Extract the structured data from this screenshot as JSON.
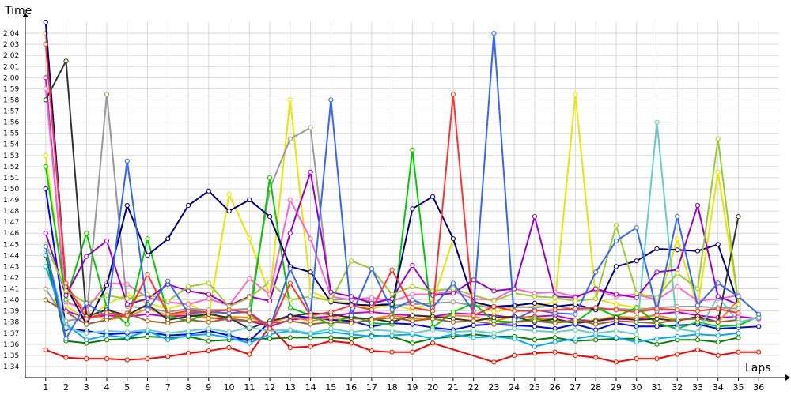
{
  "chart_data": {
    "type": "line",
    "title": "",
    "xlabel": "Laps",
    "ylabel": "Time",
    "grid": true,
    "x": [
      1,
      2,
      3,
      4,
      5,
      6,
      7,
      8,
      9,
      10,
      11,
      12,
      13,
      14,
      15,
      16,
      17,
      18,
      19,
      20,
      21,
      22,
      23,
      24,
      25,
      26,
      27,
      28,
      29,
      30,
      31,
      32,
      33,
      34,
      35,
      36
    ],
    "y_ticks": [
      "1:34",
      "1:35",
      "1:36",
      "1:37",
      "1:38",
      "1:39",
      "1:40",
      "1:41",
      "1:42",
      "1:43",
      "1:44",
      "1:45",
      "1:46",
      "1:47",
      "1:48",
      "1:49",
      "1:50",
      "1:51",
      "1:52",
      "1:53",
      "1:54",
      "1:55",
      "1:56",
      "1:57",
      "1:58",
      "1:59",
      "2:00",
      "2:01",
      "2:02",
      "2:03",
      "2:04"
    ],
    "ylim_seconds": [
      93.0,
      125.0
    ],
    "series": [
      {
        "color": "#ff0000",
        "values": [
          95.5,
          94.8,
          94.7,
          94.7,
          94.6,
          94.7,
          94.9,
          95.2,
          95.4,
          95.7,
          95.1,
          97.6,
          95.7,
          95.8,
          96.3,
          96.1,
          95.4,
          95.3,
          95.3,
          96.1,
          null,
          null,
          94.4,
          95.0,
          95.2,
          95.3,
          95.0,
          94.8,
          94.4,
          94.7,
          94.7,
          95.1,
          95.5,
          95.0,
          95.3,
          95.3
        ]
      },
      {
        "color": "#008000",
        "values": [
          104.0,
          96.3,
          96.1,
          96.4,
          96.5,
          96.7,
          96.6,
          96.7,
          96.3,
          96.4,
          96.5,
          96.5,
          96.6,
          96.6,
          96.6,
          96.5,
          96.8,
          96.7,
          96.1,
          96.5,
          96.7,
          96.9,
          96.7,
          96.7,
          96.4,
          96.6,
          96.3,
          96.4,
          96.5,
          96.5,
          96.0,
          96.4,
          96.4,
          96.2,
          96.6,
          null
        ]
      },
      {
        "color": "#0000ff",
        "values": [
          110.0,
          97.4,
          97.2,
          96.9,
          97.0,
          97.1,
          96.8,
          96.9,
          97.2,
          96.8,
          96.3,
          98.0,
          98.6,
          98.4,
          98.2,
          98.1,
          97.6,
          97.9,
          97.8,
          97.5,
          97.3,
          97.7,
          97.8,
          97.7,
          97.6,
          97.4,
          97.8,
          97.3,
          97.9,
          97.6,
          97.6,
          97.7,
          97.8,
          97.4,
          97.5,
          97.6
        ]
      },
      {
        "color": "#00aaff",
        "values": [
          103.0,
          97.8,
          96.4,
          96.8,
          96.6,
          97.2,
          96.4,
          96.8,
          96.9,
          96.6,
          96.1,
          96.9,
          97.2,
          96.9,
          97.1,
          96.9,
          96.7,
          96.8,
          96.9,
          96.5,
          96.9,
          96.6,
          96.7,
          96.5,
          95.8,
          96.2,
          96.5,
          96.8,
          96.6,
          96.2,
          96.5,
          96.7,
          96.9,
          96.8,
          97.0,
          null
        ]
      },
      {
        "color": "#cc00cc",
        "values": [
          120.0,
          99.0,
          98.4,
          98.6,
          98.5,
          98.7,
          98.5,
          98.6,
          98.4,
          98.2,
          98.1,
          97.6,
          98.2,
          98.4,
          98.5,
          98.8,
          98.9,
          98.7,
          98.6,
          98.5,
          98.8,
          98.7,
          98.6,
          98.4,
          98.5,
          98.6,
          98.2,
          98.1,
          98.3,
          98.2,
          98.7,
          98.9,
          98.6,
          98.4,
          98.5,
          98.3
        ]
      },
      {
        "color": "#ff8800",
        "values": [
          124.0,
          101.0,
          98.9,
          98.2,
          98.5,
          99.2,
          98.6,
          98.8,
          98.3,
          98.5,
          98.4,
          97.9,
          98.5,
          98.1,
          98.4,
          98.3,
          98.3,
          98.6,
          98.3,
          98.4,
          98.6,
          98.5,
          98.1,
          98.5,
          98.4,
          98.2,
          97.9,
          98.2,
          98.5,
          98.4,
          98.6,
          98.2,
          98.4,
          98.0,
          100.0,
          null
        ]
      },
      {
        "color": "#e6e600",
        "values": [
          113.0,
          99.5,
          98.2,
          99.6,
          100.5,
          99.7,
          99.2,
          99.7,
          98.6,
          109.5,
          105.5,
          100.4,
          118.0,
          100.8,
          99.9,
          99.7,
          99.2,
          99.6,
          99.1,
          99.8,
          105.5,
          99.9,
          98.9,
          99.3,
          99.4,
          99.8,
          118.5,
          100.1,
          99.6,
          99.3,
          99.1,
          105.5,
          99.3,
          111.5,
          99.7,
          null
        ]
      },
      {
        "color": "#999999",
        "values": [
          101.0,
          98.1,
          98.4,
          118.5,
          99.4,
          99.3,
          98.9,
          99.2,
          99.1,
          99.1,
          99.2,
          110.0,
          114.5,
          115.5,
          100.0,
          100.1,
          99.9,
          99.5,
          99.6,
          99.7,
          99.8,
          99.5,
          99.3,
          99.4,
          99.3,
          99.5,
          99.1,
          99.1,
          99.2,
          99.1,
          99.3,
          99.4,
          99.4,
          99.3,
          99.2,
          null
        ]
      },
      {
        "color": "#ff66cc",
        "values": [
          119.0,
          99.8,
          99.1,
          101.5,
          101.4,
          100.2,
          99.8,
          99.6,
          100.1,
          99.5,
          101.9,
          100.5,
          109.0,
          105.5,
          100.3,
          100.0,
          100.2,
          99.9,
          100.5,
          100.5,
          100.8,
          100.1,
          100.0,
          101.0,
          100.6,
          100.7,
          100.3,
          100.9,
          100.3,
          100.5,
          100.0,
          101.2,
          99.9,
          100.1,
          100.4,
          null
        ]
      },
      {
        "color": "#00cc00",
        "values": [
          112.0,
          100.0,
          106.0,
          99.3,
          97.8,
          105.5,
          98.6,
          98.1,
          98.8,
          98.3,
          98.1,
          111.0,
          99.3,
          98.6,
          97.8,
          98.6,
          97.9,
          97.8,
          113.5,
          97.5,
          98.9,
          99.7,
          98.1,
          98.0,
          98.3,
          98.0,
          98.0,
          99.3,
          98.5,
          99.3,
          97.9,
          97.4,
          98.0,
          97.6,
          97.7,
          98.5
        ]
      },
      {
        "color": "#000080",
        "values": [
          125.0,
          101.2,
          97.8,
          101.3,
          108.5,
          104.0,
          105.5,
          108.5,
          109.8,
          108.0,
          109.0,
          107.5,
          103.0,
          102.5,
          99.8,
          99.6,
          99.5,
          99.6,
          108.2,
          109.3,
          105.5,
          99.8,
          99.4,
          99.5,
          99.7,
          99.4,
          99.6,
          99.1,
          103.0,
          103.5,
          104.6,
          104.5,
          104.4,
          105.0,
          99.6,
          null
        ]
      },
      {
        "color": "#333333",
        "values": [
          118.0,
          121.5,
          98.5,
          99.1,
          98.6,
          99.6,
          98.2,
          98.5,
          98.7,
          98.4,
          97.4,
          98.1,
          98.5,
          98.8,
          98.7,
          98.4,
          98.3,
          98.0,
          98.6,
          98.5,
          98.3,
          98.1,
          98.4,
          98.5,
          98.0,
          98.3,
          97.9,
          98.1,
          98.4,
          98.2,
          98.3,
          98.1,
          98.5,
          98.0,
          107.5,
          null
        ]
      },
      {
        "color": "#996633",
        "values": [
          100.0,
          98.9,
          97.8,
          98.2,
          98.8,
          98.1,
          97.9,
          98.2,
          98.0,
          98.3,
          98.1,
          97.9,
          98.1,
          97.8,
          98.0,
          97.9,
          98.2,
          98.4,
          98.1,
          98.3,
          98.0,
          98.1,
          97.8,
          98.0,
          98.1,
          97.9,
          98.2,
          97.8,
          98.1,
          98.0,
          97.9,
          98.2,
          98.3,
          98.0,
          98.2,
          null
        ]
      },
      {
        "color": "#66cccc",
        "values": [
          104.5,
          97.5,
          97.0,
          97.2,
          97.1,
          97.3,
          97.0,
          97.2,
          97.4,
          97.1,
          97.5,
          97.2,
          97.3,
          97.0,
          97.4,
          97.1,
          97.3,
          97.2,
          97.0,
          97.3,
          97.1,
          97.2,
          97.0,
          97.4,
          97.2,
          97.1,
          97.3,
          97.0,
          97.2,
          96.9,
          116.0,
          97.4,
          97.1,
          100.3,
          98.0,
          98.4
        ]
      },
      {
        "color": "#9900cc",
        "values": [
          106.0,
          100.4,
          103.9,
          105.3,
          99.6,
          100.1,
          101.4,
          100.8,
          100.5,
          99.5,
          100.3,
          99.9,
          106.0,
          111.5,
          100.7,
          100.3,
          99.7,
          100.1,
          103.1,
          100.4,
          100.6,
          101.8,
          100.8,
          101.0,
          107.5,
          100.3,
          100.2,
          101.0,
          100.5,
          100.2,
          102.5,
          102.7,
          108.5,
          100.3,
          99.6,
          null
        ]
      },
      {
        "color": "#99cc33",
        "values": [
          105.0,
          100.8,
          99.7,
          100.4,
          100.1,
          100.5,
          99.9,
          101.2,
          101.5,
          99.4,
          100.2,
          101.6,
          100.0,
          100.3,
          99.9,
          103.5,
          102.8,
          100.5,
          101.2,
          100.8,
          101.0,
          100.4,
          99.9,
          100.6,
          100.3,
          100.2,
          99.9,
          100.1,
          106.7,
          100.6,
          100.2,
          102.4,
          101.0,
          114.5,
          99.6,
          null
        ]
      },
      {
        "color": "#3366ff",
        "values": [
          104.8,
          96.5,
          99.7,
          98.5,
          112.5,
          99.1,
          101.7,
          98.8,
          98.9,
          98.8,
          98.9,
          97.5,
          102.8,
          98.8,
          118.0,
          98.6,
          102.8,
          99.1,
          100.0,
          99.3,
          101.5,
          99.0,
          124.0,
          98.2,
          99.1,
          98.8,
          98.7,
          102.5,
          105.3,
          106.5,
          99.0,
          107.5,
          99.5,
          101.5,
          100.3,
          98.7
        ]
      },
      {
        "color": "#ff3333",
        "values": [
          123.0,
          101.5,
          98.3,
          98.8,
          98.6,
          102.3,
          98.7,
          99.0,
          98.9,
          99.1,
          98.8,
          97.4,
          101.5,
          98.6,
          98.9,
          99.5,
          99.1,
          102.7,
          99.3,
          99.0,
          118.5,
          98.6,
          99.4,
          99.0,
          99.0,
          99.1,
          99.2,
          99.3,
          99.1,
          98.9,
          99.2,
          99.1,
          99.0,
          99.2,
          98.8,
          null
        ]
      }
    ]
  }
}
